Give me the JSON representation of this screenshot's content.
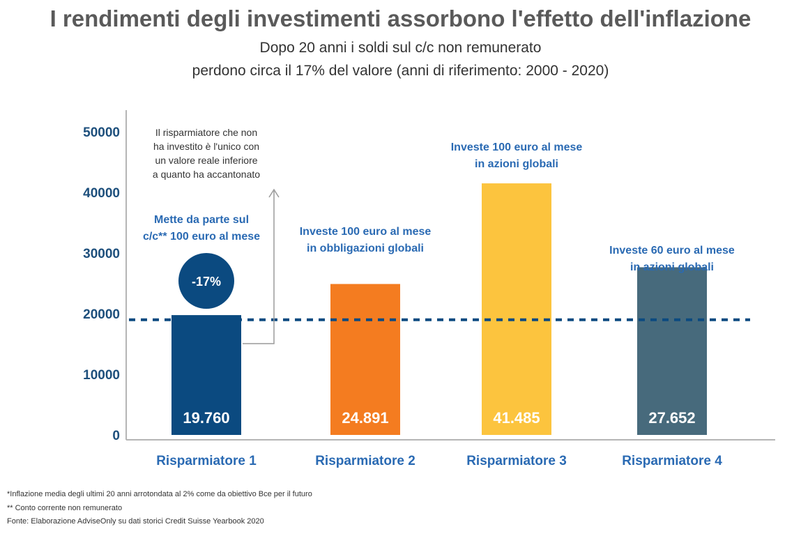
{
  "title": "I rendimenti degli investimenti assorbono l'effetto dell'inflazione",
  "subtitle_line1": "Dopo 20 anni i soldi sul c/c non remunerato",
  "subtitle_line2": "perdono circa il 17% del valore (anni di riferimento: 2000 - 2020)",
  "chart_data": {
    "type": "bar",
    "categories": [
      "Risparmiatore 1",
      "Risparmiatore 2",
      "Risparmiatore 3",
      "Risparmiatore 4"
    ],
    "values": [
      19760,
      24891,
      41485,
      27652
    ],
    "value_labels": [
      "19.760",
      "24.891",
      "41.485",
      "27.652"
    ],
    "bar_colors": [
      "#0b4a80",
      "#f47c20",
      "#fcc43e",
      "#476a7c"
    ],
    "value_label_colors": [
      "#ffffff",
      "#ffffff",
      "#ffffff",
      "#ffffff"
    ],
    "ylim": [
      0,
      50000
    ],
    "yticks": [
      0,
      10000,
      20000,
      30000,
      40000,
      50000
    ],
    "ytick_labels": [
      "0",
      "10000",
      "20000",
      "30000",
      "40000",
      "50000"
    ],
    "reference_line": 19000,
    "reference_line_color": "#0b4a80",
    "label_color": "#2a6ab3",
    "bar_annotations": [
      [
        "Mette da parte sul",
        "c/c** 100 euro al mese"
      ],
      [
        "Investe 100 euro al mese",
        "in obbligazioni globali"
      ],
      [
        "Investe 100 euro al mese",
        "in azioni globali"
      ],
      [
        "Investe 60 euro al mese",
        "in azioni globali"
      ]
    ],
    "badge": {
      "text": "-17%",
      "color": "#0b4a80"
    },
    "callout_lines": [
      "Il risparmiatore che non",
      "ha investito è l'unico con",
      "un valore reale inferiore",
      "a quanto ha accantonato"
    ]
  },
  "footnotes": [
    "*Inflazione media degli ultimi 20 anni arrotondata al 2% come da obiettivo Bce per il futuro",
    "** Conto corrente non remunerato",
    "Fonte: Elaborazione AdviseOnly su dati storici Credit Suisse Yearbook 2020"
  ]
}
